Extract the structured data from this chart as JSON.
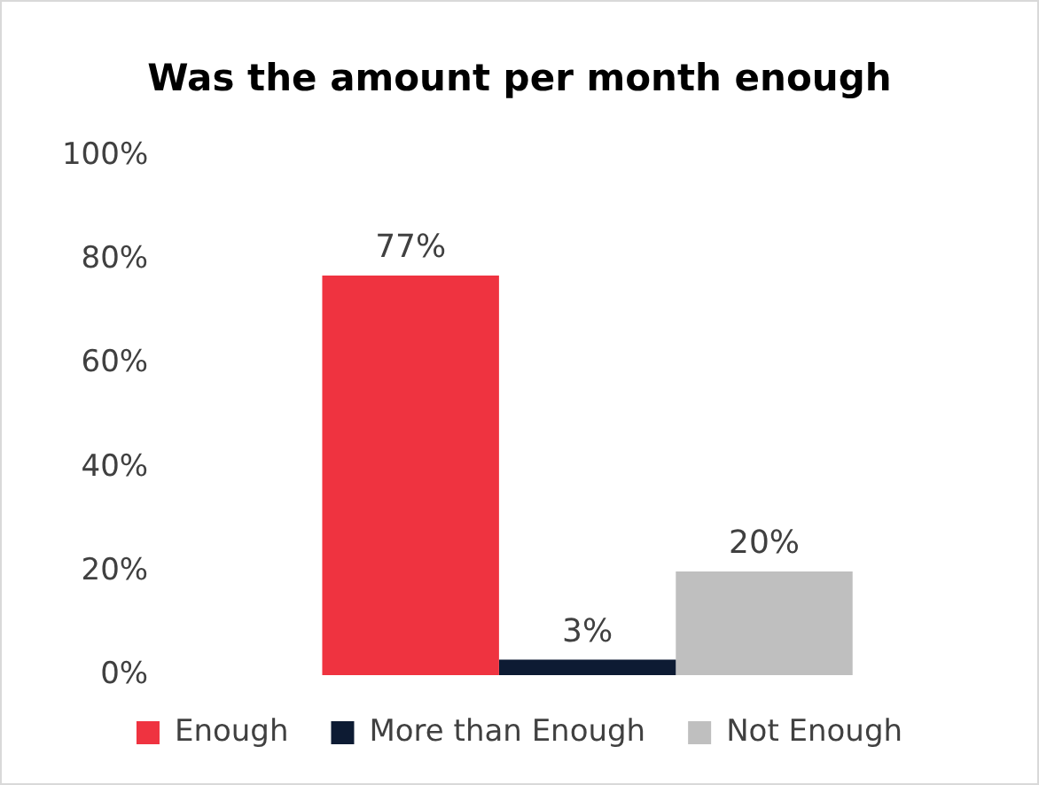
{
  "chart_data": {
    "type": "bar",
    "title": "Was the amount per month enough",
    "categories": [
      null
    ],
    "series": [
      {
        "name": "Enough",
        "color": "#ef3340",
        "values": [
          77
        ],
        "value_labels": [
          "77%"
        ]
      },
      {
        "name": "More than Enough",
        "color": "#0d1b33",
        "values": [
          3
        ],
        "value_labels": [
          "3%"
        ]
      },
      {
        "name": "Not Enough",
        "color": "#bfbfbf",
        "values": [
          20
        ],
        "value_labels": [
          "20%"
        ]
      }
    ],
    "ylim": [
      0,
      100
    ],
    "yticks": [
      {
        "value": 0,
        "label": "0%"
      },
      {
        "value": 20,
        "label": "20%"
      },
      {
        "value": 40,
        "label": "40%"
      },
      {
        "value": 60,
        "label": "60%"
      },
      {
        "value": 80,
        "label": "80%"
      },
      {
        "value": 100,
        "label": "100%"
      }
    ],
    "grid": false,
    "legend": "bottom"
  }
}
